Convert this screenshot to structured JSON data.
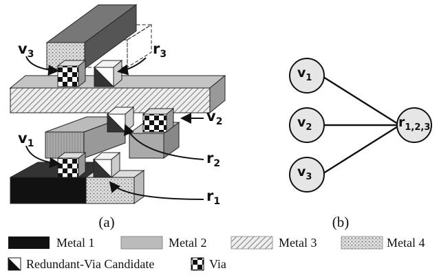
{
  "panel_a": {
    "labels": [
      {
        "base": "v",
        "sub": "3"
      },
      {
        "base": "r",
        "sub": "3"
      },
      {
        "base": "v",
        "sub": "2"
      },
      {
        "base": "r",
        "sub": "2"
      },
      {
        "base": "v",
        "sub": "1"
      },
      {
        "base": "r",
        "sub": "1"
      }
    ],
    "caption": "(a)"
  },
  "panel_b": {
    "nodes": [
      {
        "base": "v",
        "sub": "1"
      },
      {
        "base": "v",
        "sub": "2"
      },
      {
        "base": "v",
        "sub": "3"
      },
      {
        "base": "r",
        "sub": "1,2,3"
      }
    ],
    "caption": "(b)"
  },
  "legend": [
    "Metal 1",
    "Metal 2",
    "Metal 3",
    "Metal 4",
    "Redundant-Via Candidate",
    "Via"
  ]
}
